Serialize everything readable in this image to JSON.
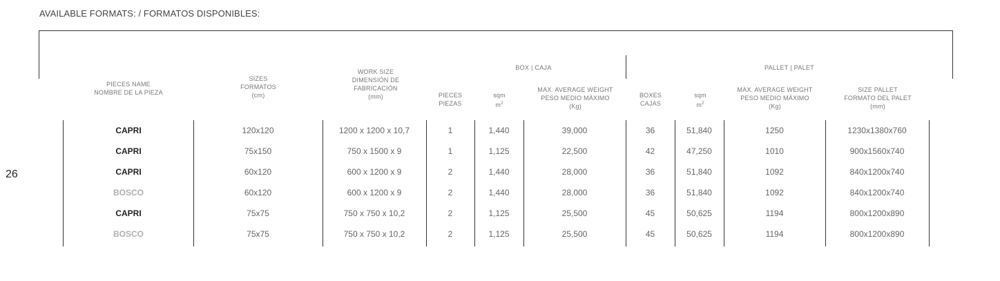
{
  "heading": "AVAILABLE FORMATS: / FORMATOS DISPONIBLES:",
  "page_number": "26",
  "groups": {
    "box": "BOX | CAJA",
    "pallet": "PALLET | PALET"
  },
  "headers": {
    "pieces_name": [
      "PIECES NAME",
      "NOMBRE DE LA PIEZA"
    ],
    "sizes": [
      "SIZES",
      "FORMATOS",
      "(cm)"
    ],
    "work_size": [
      "WORK SIZE",
      "DIMENSIÓN DE",
      "FABRICACIÓN",
      "(mm)"
    ],
    "pieces": [
      "PIECES",
      "PIEZAS"
    ],
    "box_sqm": [
      "sqm",
      "m",
      "2"
    ],
    "box_weight": [
      "MAX. AVERAGE WEIGHT",
      "PESO MEDIO MÁXIMO",
      "(Kg)"
    ],
    "boxes": [
      "BOXES",
      "CAJAS"
    ],
    "pallet_sqm": [
      "sqm",
      "m",
      "2"
    ],
    "pallet_weight": [
      "MAX. AVERAGE WEIGHT",
      "PESO MEDIO MÁXIMO",
      "(Kg)"
    ],
    "size_pallet": [
      "SIZE PALLET",
      "FORMATO DEL PALET",
      "(mm)"
    ]
  },
  "rows": [
    {
      "name": "CAPRI",
      "grey": false,
      "size": "120x120",
      "work": "1200 x 1200 x 10,7",
      "pieces": "1",
      "sqm": "1,440",
      "weight": "39,000",
      "boxes": "36",
      "psqm": "51,840",
      "pweight": "1250",
      "pallet": "1230x1380x760"
    },
    {
      "name": "CAPRI",
      "grey": false,
      "size": "75x150",
      "work": "750 x 1500 x 9",
      "pieces": "1",
      "sqm": "1,125",
      "weight": "22,500",
      "boxes": "42",
      "psqm": "47,250",
      "pweight": "1010",
      "pallet": "900x1560x740"
    },
    {
      "name": "CAPRI",
      "grey": false,
      "size": "60x120",
      "work": "600 x 1200 x 9",
      "pieces": "2",
      "sqm": "1,440",
      "weight": "28,000",
      "boxes": "36",
      "psqm": "51,840",
      "pweight": "1092",
      "pallet": "840x1200x740"
    },
    {
      "name": "BOSCO",
      "grey": true,
      "size": "60x120",
      "work": "600 x 1200 x 9",
      "pieces": "2",
      "sqm": "1,440",
      "weight": "28,000",
      "boxes": "36",
      "psqm": "51,840",
      "pweight": "1092",
      "pallet": "840x1200x740"
    },
    {
      "name": "CAPRI",
      "grey": false,
      "size": "75x75",
      "work": "750 x 750 x 10,2",
      "pieces": "2",
      "sqm": "1,125",
      "weight": "25,500",
      "boxes": "45",
      "psqm": "50,625",
      "pweight": "1194",
      "pallet": "800x1200x890"
    },
    {
      "name": "BOSCO",
      "grey": true,
      "size": "75x75",
      "work": "750 x 750 x 10,2",
      "pieces": "2",
      "sqm": "1,125",
      "weight": "25,500",
      "boxes": "45",
      "psqm": "50,625",
      "pweight": "1194",
      "pallet": "800x1200x890"
    }
  ]
}
